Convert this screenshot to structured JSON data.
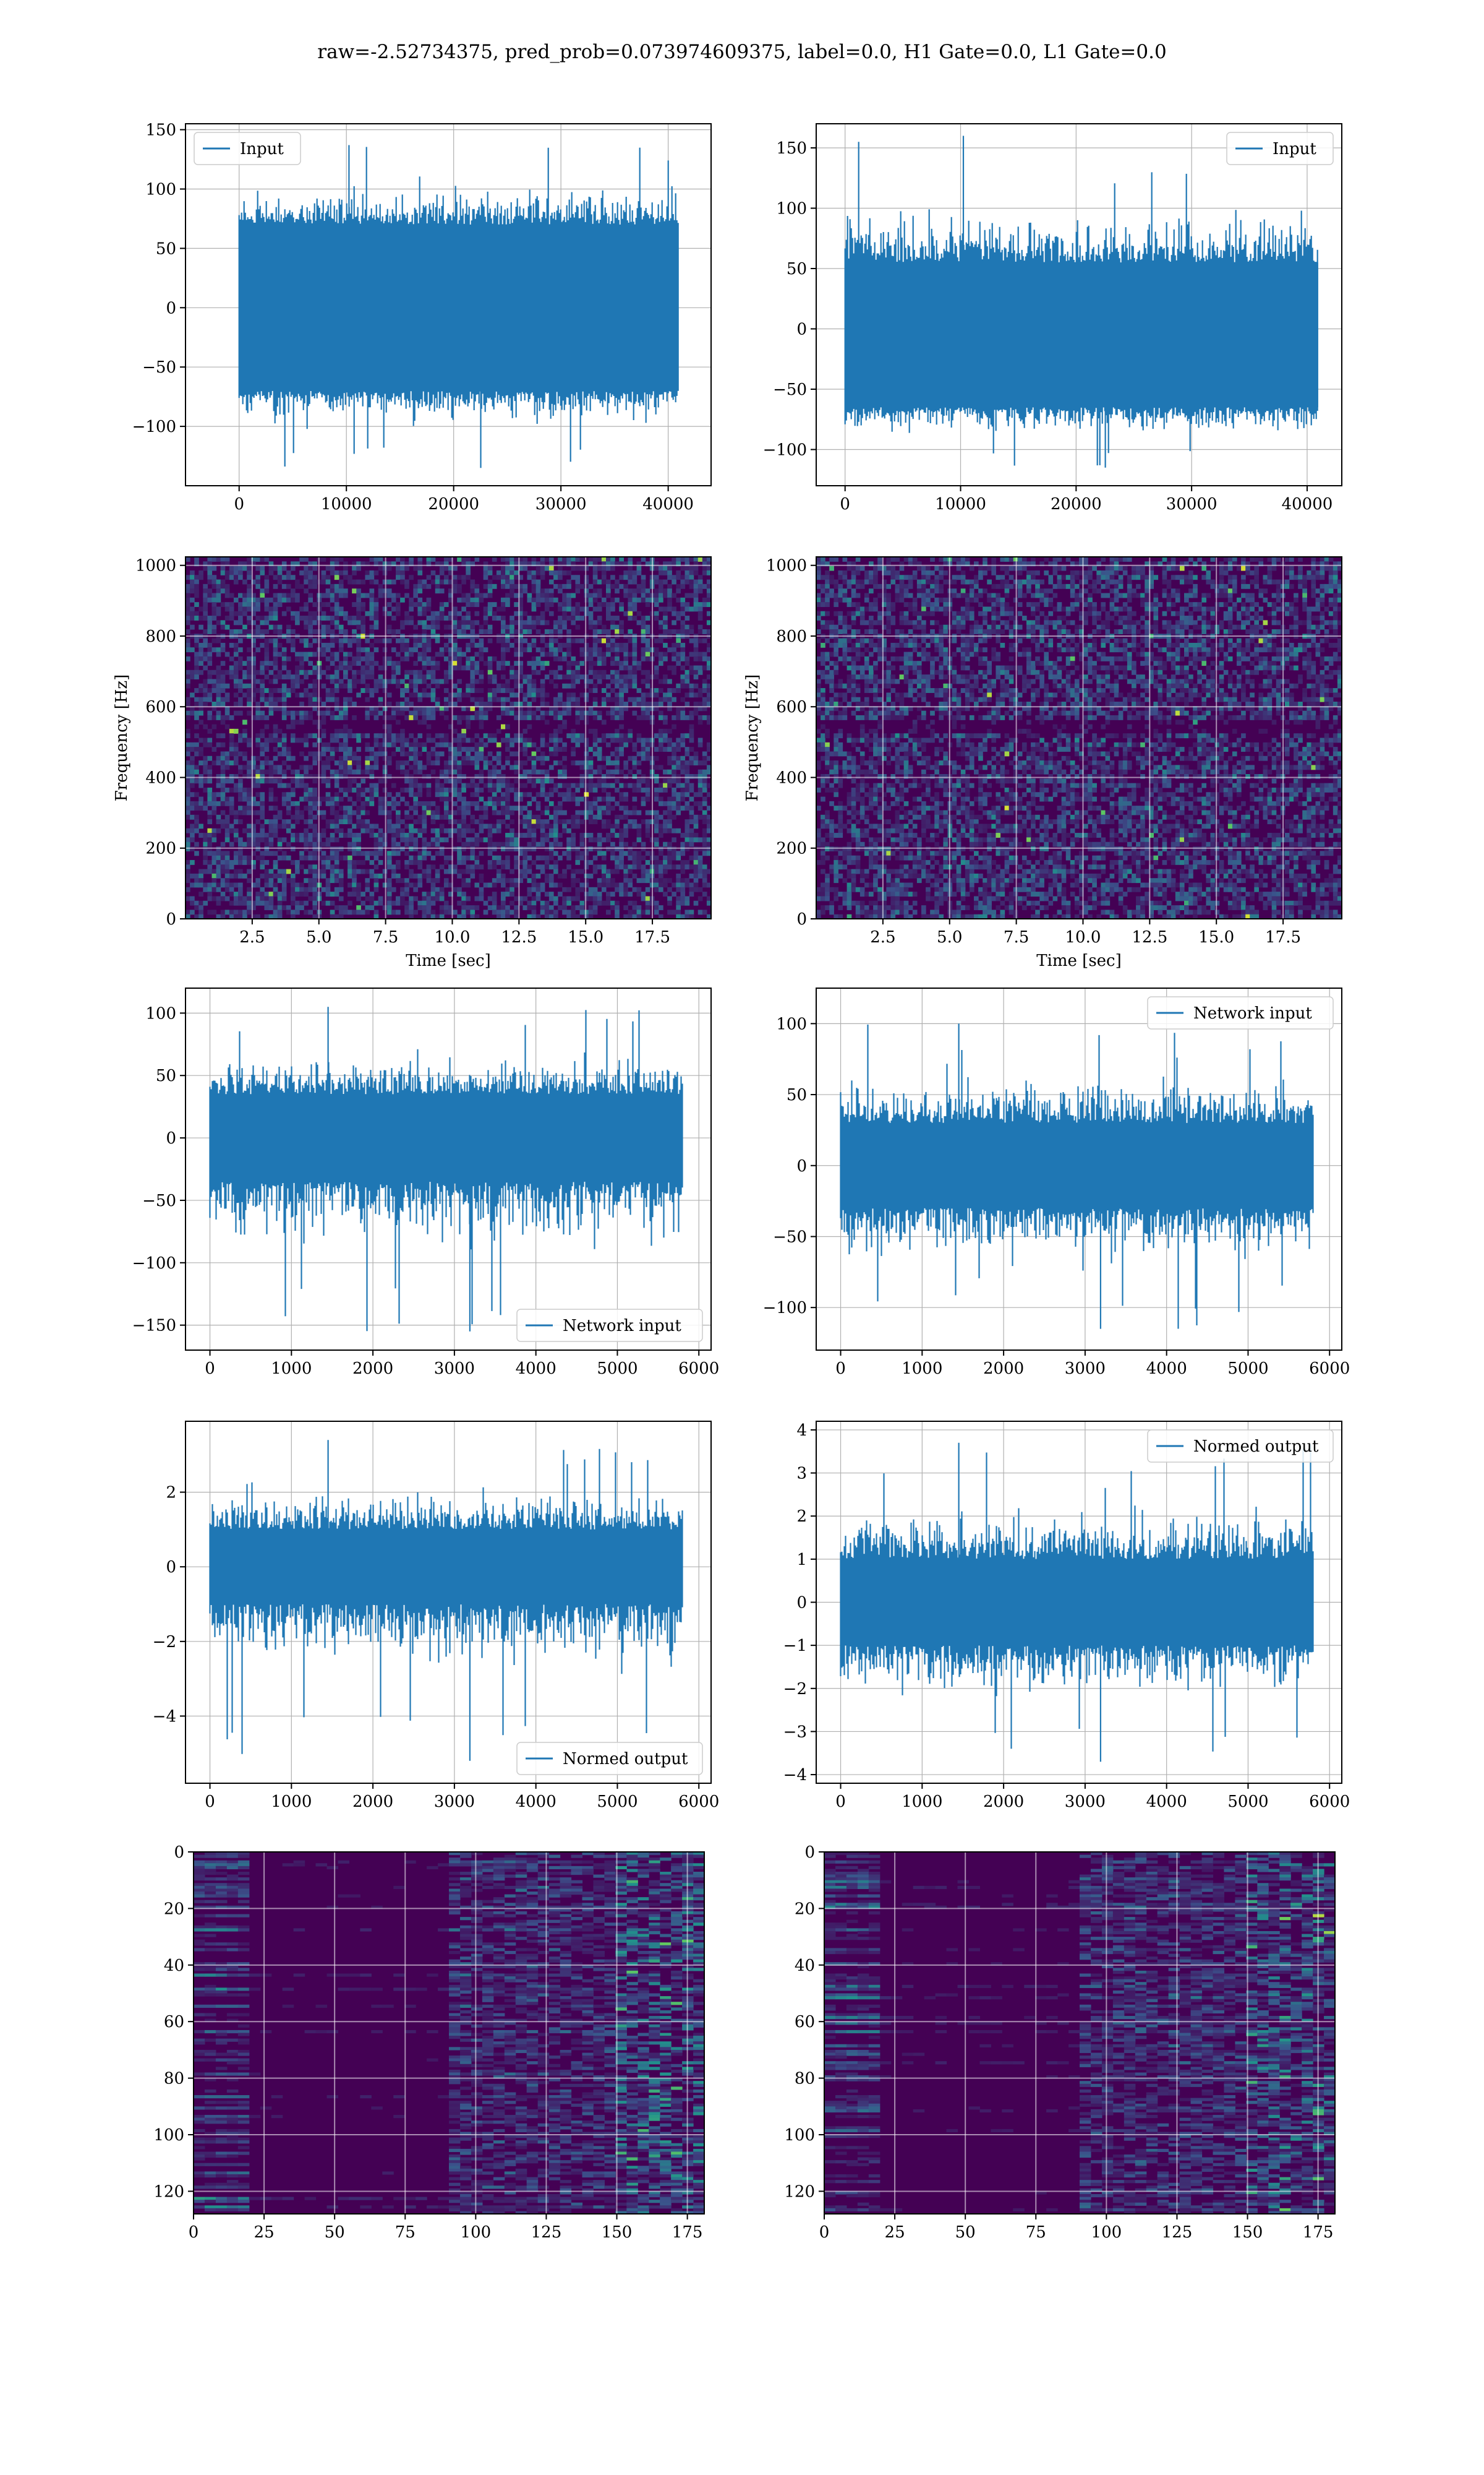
{
  "figure": {
    "title": "raw=-2.52734375, pred_prob=0.073974609375, label=0.0, H1 Gate=0.0, L1 Gate=0.0"
  },
  "colors": {
    "series": "#1f77b4",
    "grid": "#b0b0b0",
    "viridis_dark": "#440154",
    "viridis_blue": "#31688e",
    "viridis_teal": "#21918c",
    "viridis_green": "#5ec962",
    "viridis_yellow": "#fde725"
  },
  "chart_data": [
    {
      "id": "h1-input",
      "type": "line",
      "title": "",
      "xlabel": "",
      "ylabel": "",
      "xlim": [
        -5000,
        44000
      ],
      "ylim": [
        -150,
        155
      ],
      "xticks": [
        0,
        10000,
        20000,
        30000,
        40000
      ],
      "xtick_labels": [
        "0",
        "10000",
        "20000",
        "30000",
        "40000"
      ],
      "yticks": [
        -100,
        -50,
        0,
        50,
        100,
        150
      ],
      "ytick_labels": [
        "−100",
        "−50",
        "0",
        "50",
        "100",
        "150"
      ],
      "grid": true,
      "legend": "upper-left",
      "series": [
        {
          "name": "Input",
          "x_range": [
            0,
            40960
          ],
          "band_upper": 70,
          "band_lower": -70,
          "max": 137,
          "min": -135
        }
      ]
    },
    {
      "id": "l1-input",
      "type": "line",
      "title": "",
      "xlabel": "",
      "ylabel": "",
      "xlim": [
        -2500,
        43000
      ],
      "ylim": [
        -130,
        170
      ],
      "xticks": [
        0,
        10000,
        20000,
        30000,
        40000
      ],
      "xtick_labels": [
        "0",
        "10000",
        "20000",
        "30000",
        "40000"
      ],
      "yticks": [
        -100,
        -50,
        0,
        50,
        100,
        150
      ],
      "ytick_labels": [
        "−100",
        "−50",
        "0",
        "50",
        "100",
        "150"
      ],
      "grid": true,
      "legend": "upper-right",
      "series": [
        {
          "name": "Input",
          "x_range": [
            0,
            40960
          ],
          "band_upper": 55,
          "band_lower": -65,
          "max": 160,
          "min": -115
        }
      ]
    },
    {
      "id": "h1-spectrogram",
      "type": "heatmap",
      "title": "",
      "xlabel": "Time [sec]",
      "ylabel": "Frequency [Hz]",
      "xlim": [
        0,
        19.7
      ],
      "ylim": [
        0,
        1024
      ],
      "xticks": [
        2.5,
        5.0,
        7.5,
        10.0,
        12.5,
        15.0,
        17.5
      ],
      "xtick_labels": [
        "2.5",
        "5.0",
        "7.5",
        "10.0",
        "12.5",
        "15.0",
        "17.5"
      ],
      "yticks": [
        0,
        200,
        400,
        600,
        800,
        1000
      ],
      "ytick_labels": [
        "0",
        "200",
        "400",
        "600",
        "800",
        "1000"
      ],
      "grid": true,
      "colormap": "viridis"
    },
    {
      "id": "l1-spectrogram",
      "type": "heatmap",
      "title": "",
      "xlabel": "Time [sec]",
      "ylabel": "Frequency [Hz]",
      "xlim": [
        0,
        19.7
      ],
      "ylim": [
        0,
        1024
      ],
      "xticks": [
        2.5,
        5.0,
        7.5,
        10.0,
        12.5,
        15.0,
        17.5
      ],
      "xtick_labels": [
        "2.5",
        "5.0",
        "7.5",
        "10.0",
        "12.5",
        "15.0",
        "17.5"
      ],
      "yticks": [
        0,
        200,
        400,
        600,
        800,
        1000
      ],
      "ytick_labels": [
        "0",
        "200",
        "400",
        "600",
        "800",
        "1000"
      ],
      "grid": true,
      "colormap": "viridis"
    },
    {
      "id": "h1-network-input",
      "type": "line",
      "title": "",
      "xlabel": "",
      "ylabel": "",
      "xlim": [
        -300,
        6150
      ],
      "ylim": [
        -170,
        120
      ],
      "xticks": [
        0,
        1000,
        2000,
        3000,
        4000,
        5000,
        6000
      ],
      "xtick_labels": [
        "0",
        "1000",
        "2000",
        "3000",
        "4000",
        "5000",
        "6000"
      ],
      "yticks": [
        -150,
        -100,
        -50,
        0,
        50,
        100
      ],
      "ytick_labels": [
        "−150",
        "−100",
        "−50",
        "0",
        "50",
        "100"
      ],
      "grid": true,
      "legend": "lower-right",
      "series": [
        {
          "name": "Network input",
          "x_range": [
            0,
            5800
          ],
          "band_upper": 35,
          "band_lower": -35,
          "max": 105,
          "min": -155
        }
      ]
    },
    {
      "id": "l1-network-input",
      "type": "line",
      "title": "",
      "xlabel": "",
      "ylabel": "",
      "xlim": [
        -300,
        6150
      ],
      "ylim": [
        -130,
        125
      ],
      "xticks": [
        0,
        1000,
        2000,
        3000,
        4000,
        5000,
        6000
      ],
      "xtick_labels": [
        "0",
        "1000",
        "2000",
        "3000",
        "4000",
        "5000",
        "6000"
      ],
      "yticks": [
        -100,
        -50,
        0,
        50,
        100
      ],
      "ytick_labels": [
        "−100",
        "−50",
        "0",
        "50",
        "100"
      ],
      "grid": true,
      "legend": "upper-right",
      "series": [
        {
          "name": "Network input",
          "x_range": [
            0,
            5800
          ],
          "band_upper": 30,
          "band_lower": -30,
          "max": 100,
          "min": -115
        }
      ]
    },
    {
      "id": "h1-normed-output",
      "type": "line",
      "title": "",
      "xlabel": "",
      "ylabel": "",
      "xlim": [
        -300,
        6150
      ],
      "ylim": [
        -5.8,
        3.9
      ],
      "xticks": [
        0,
        1000,
        2000,
        3000,
        4000,
        5000,
        6000
      ],
      "xtick_labels": [
        "0",
        "1000",
        "2000",
        "3000",
        "4000",
        "5000",
        "6000"
      ],
      "yticks": [
        -4,
        -2,
        0,
        2
      ],
      "ytick_labels": [
        "−4",
        "−2",
        "0",
        "2"
      ],
      "grid": true,
      "legend": "lower-right",
      "series": [
        {
          "name": "Normed output",
          "x_range": [
            0,
            5800
          ],
          "band_upper": 1.0,
          "band_lower": -1.0,
          "max": 3.4,
          "min": -5.2
        }
      ]
    },
    {
      "id": "l1-normed-output",
      "type": "line",
      "title": "",
      "xlabel": "",
      "ylabel": "",
      "xlim": [
        -300,
        6150
      ],
      "ylim": [
        -4.2,
        4.2
      ],
      "xticks": [
        0,
        1000,
        2000,
        3000,
        4000,
        5000,
        6000
      ],
      "xtick_labels": [
        "0",
        "1000",
        "2000",
        "3000",
        "4000",
        "5000",
        "6000"
      ],
      "yticks": [
        -4,
        -3,
        -2,
        -1,
        0,
        1,
        2,
        3,
        4
      ],
      "ytick_labels": [
        "−4",
        "−3",
        "−2",
        "−1",
        "0",
        "1",
        "2",
        "3",
        "4"
      ],
      "grid": true,
      "legend": "upper-right",
      "series": [
        {
          "name": "Normed output",
          "x_range": [
            0,
            5800
          ],
          "band_upper": 1.0,
          "band_lower": -1.0,
          "max": 3.7,
          "min": -3.7
        }
      ]
    },
    {
      "id": "h1-feature-map",
      "type": "heatmap",
      "title": "",
      "xlabel": "",
      "ylabel": "",
      "xlim": [
        0,
        181
      ],
      "ylim": [
        128,
        0
      ],
      "xticks": [
        0,
        25,
        50,
        75,
        100,
        125,
        150,
        175
      ],
      "xtick_labels": [
        "0",
        "25",
        "50",
        "75",
        "100",
        "125",
        "150",
        "175"
      ],
      "yticks": [
        0,
        20,
        40,
        60,
        80,
        100,
        120
      ],
      "ytick_labels": [
        "0",
        "20",
        "40",
        "60",
        "80",
        "100",
        "120"
      ],
      "grid": true,
      "colormap": "viridis"
    },
    {
      "id": "l1-feature-map",
      "type": "heatmap",
      "title": "",
      "xlabel": "",
      "ylabel": "",
      "xlim": [
        0,
        181
      ],
      "ylim": [
        128,
        0
      ],
      "xticks": [
        0,
        25,
        50,
        75,
        100,
        125,
        150,
        175
      ],
      "xtick_labels": [
        "0",
        "25",
        "50",
        "75",
        "100",
        "125",
        "150",
        "175"
      ],
      "yticks": [
        0,
        20,
        40,
        60,
        80,
        100,
        120
      ],
      "ytick_labels": [
        "0",
        "20",
        "40",
        "60",
        "80",
        "100",
        "120"
      ],
      "grid": true,
      "colormap": "viridis"
    }
  ]
}
